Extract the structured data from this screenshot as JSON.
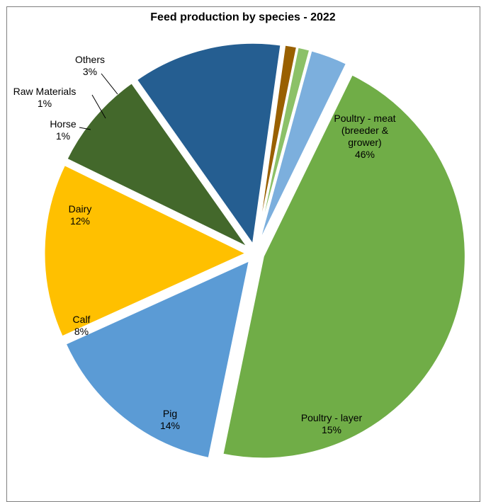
{
  "chart_data": {
    "type": "pie",
    "title": "Feed production by species - 2022",
    "slices": [
      {
        "label_lines": [
          "Poultry - meat",
          "(breeder &",
          "grower)"
        ],
        "percent_label": "46%",
        "value": 46,
        "color": "#70ad47"
      },
      {
        "label_lines": [
          "Poultry - layer"
        ],
        "percent_label": "15%",
        "value": 15,
        "color": "#5b9bd5"
      },
      {
        "label_lines": [
          "Pig"
        ],
        "percent_label": "14%",
        "value": 14,
        "color": "#ffc000"
      },
      {
        "label_lines": [
          "Calf"
        ],
        "percent_label": "8%",
        "value": 8,
        "color": "#43682b"
      },
      {
        "label_lines": [
          "Dairy"
        ],
        "percent_label": "12%",
        "value": 12,
        "color": "#255e91"
      },
      {
        "label_lines": [
          "Horse"
        ],
        "percent_label": "1%",
        "value": 1,
        "color": "#996000"
      },
      {
        "label_lines": [
          "Raw Materials"
        ],
        "percent_label": "1%",
        "value": 1,
        "color": "#8cc168"
      },
      {
        "label_lines": [
          "Others"
        ],
        "percent_label": "3%",
        "value": 3,
        "color": "#7cafdd"
      }
    ]
  }
}
